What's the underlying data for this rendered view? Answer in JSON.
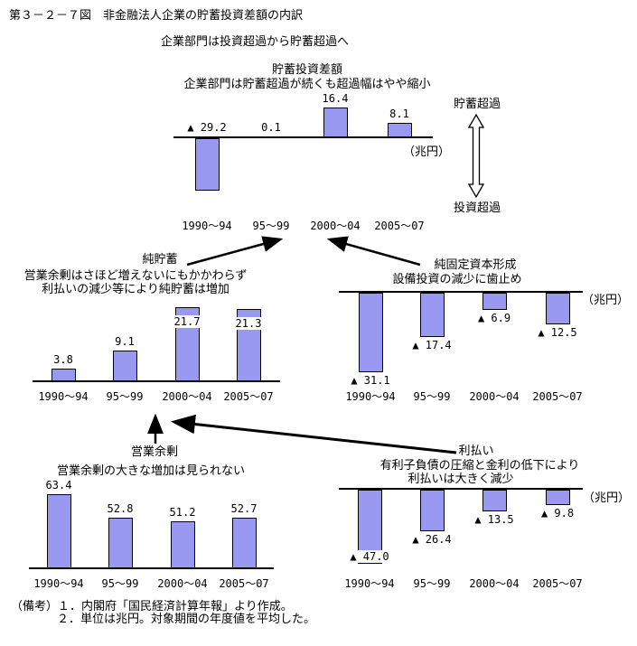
{
  "figure": {
    "title": "第３－２－７図　非金融法人企業の貯蓄投資差額の内訳",
    "subtitle": "企業部門は投資超過から貯蓄超過へ"
  },
  "side_labels": {
    "top": "貯蓄超過",
    "bottom": "投資超過"
  },
  "notes": {
    "line1": "（備考）１．内閣府「国民経済計算年報」より作成。",
    "line2": "２．単位は兆円。対象期間の年度値を平均した。"
  },
  "colors": {
    "bar_fill": "#9999F2",
    "bar_border": "#000000",
    "line": "#000000"
  },
  "chart_data": [
    {
      "id": "balance",
      "type": "bar",
      "title": "貯蓄投資差額",
      "subtitle_lines": [
        "企業部門は貯蓄超過が続くも超過幅はやや縮小"
      ],
      "unit_label": "（兆円）",
      "categories": [
        "1990～94",
        "95～99",
        "2000～04",
        "2005～07"
      ],
      "values": [
        -29.2,
        0.1,
        16.4,
        8.1
      ],
      "value_labels": [
        "▲ 29.2",
        "0.1",
        "16.4",
        "8.1"
      ],
      "label_placement": [
        "axis",
        "axis",
        "above",
        "above"
      ],
      "ylim": [
        -35,
        20
      ],
      "xlabel": "",
      "ylabel": ""
    },
    {
      "id": "net_saving",
      "type": "bar",
      "title": "純貯蓄",
      "subtitle_lines": [
        "営業余剰はさほど増えないにもかかわらず",
        "利払いの減少等により純貯蓄は増加"
      ],
      "unit_label": "",
      "categories": [
        "1990～94",
        "95～99",
        "2000～04",
        "2005～07"
      ],
      "values": [
        3.8,
        9.1,
        21.7,
        21.3
      ],
      "value_labels": [
        "3.8",
        "9.1",
        "21.7",
        "21.3"
      ],
      "label_placement": [
        "above",
        "above",
        "inside",
        "inside"
      ],
      "ylim": [
        0,
        25
      ],
      "xlabel": "",
      "ylabel": ""
    },
    {
      "id": "net_fixed_capital",
      "type": "bar",
      "title": "純固定資本形成",
      "subtitle_lines": [
        "設備投資の減少に歯止め"
      ],
      "unit_label": "（兆円）",
      "categories": [
        "1990～94",
        "95～99",
        "2000～04",
        "2005～07"
      ],
      "values": [
        -31.1,
        -17.4,
        -6.9,
        -12.5
      ],
      "value_labels": [
        "▲ 31.1",
        "▲ 17.4",
        "▲ 6.9",
        "▲ 12.5"
      ],
      "label_placement": [
        "below",
        "below",
        "below",
        "below"
      ],
      "ylim": [
        -35,
        0
      ],
      "xlabel": "",
      "ylabel": ""
    },
    {
      "id": "operating_surplus",
      "type": "bar",
      "title": "営業余剰",
      "subtitle_lines": [
        "営業余剰の大きな増加は見られない"
      ],
      "unit_label": "",
      "categories": [
        "1990～94",
        "95～99",
        "2000～04",
        "2005～07"
      ],
      "values": [
        63.4,
        52.8,
        51.2,
        52.7
      ],
      "value_labels": [
        "63.4",
        "52.8",
        "51.2",
        "52.7"
      ],
      "label_placement": [
        "above",
        "above",
        "above",
        "above"
      ],
      "ylim": [
        30,
        70
      ],
      "xlabel": "",
      "ylabel": ""
    },
    {
      "id": "interest_paid",
      "type": "bar",
      "title": "利払い",
      "subtitle_lines": [
        "有利子負債の圧縮と金利の低下により",
        "利払いは大きく減少"
      ],
      "unit_label": "（兆円）",
      "categories": [
        "1990～94",
        "95～99",
        "2000～04",
        "2005～07"
      ],
      "values": [
        -47.0,
        -26.4,
        -13.5,
        -9.8
      ],
      "value_labels": [
        "▲ 47.0",
        "▲ 26.4",
        "▲ 13.5",
        "▲ 9.8"
      ],
      "label_placement": [
        "overlap",
        "below",
        "below",
        "below"
      ],
      "ylim": [
        -50,
        0
      ],
      "xlabel": "",
      "ylabel": ""
    }
  ]
}
